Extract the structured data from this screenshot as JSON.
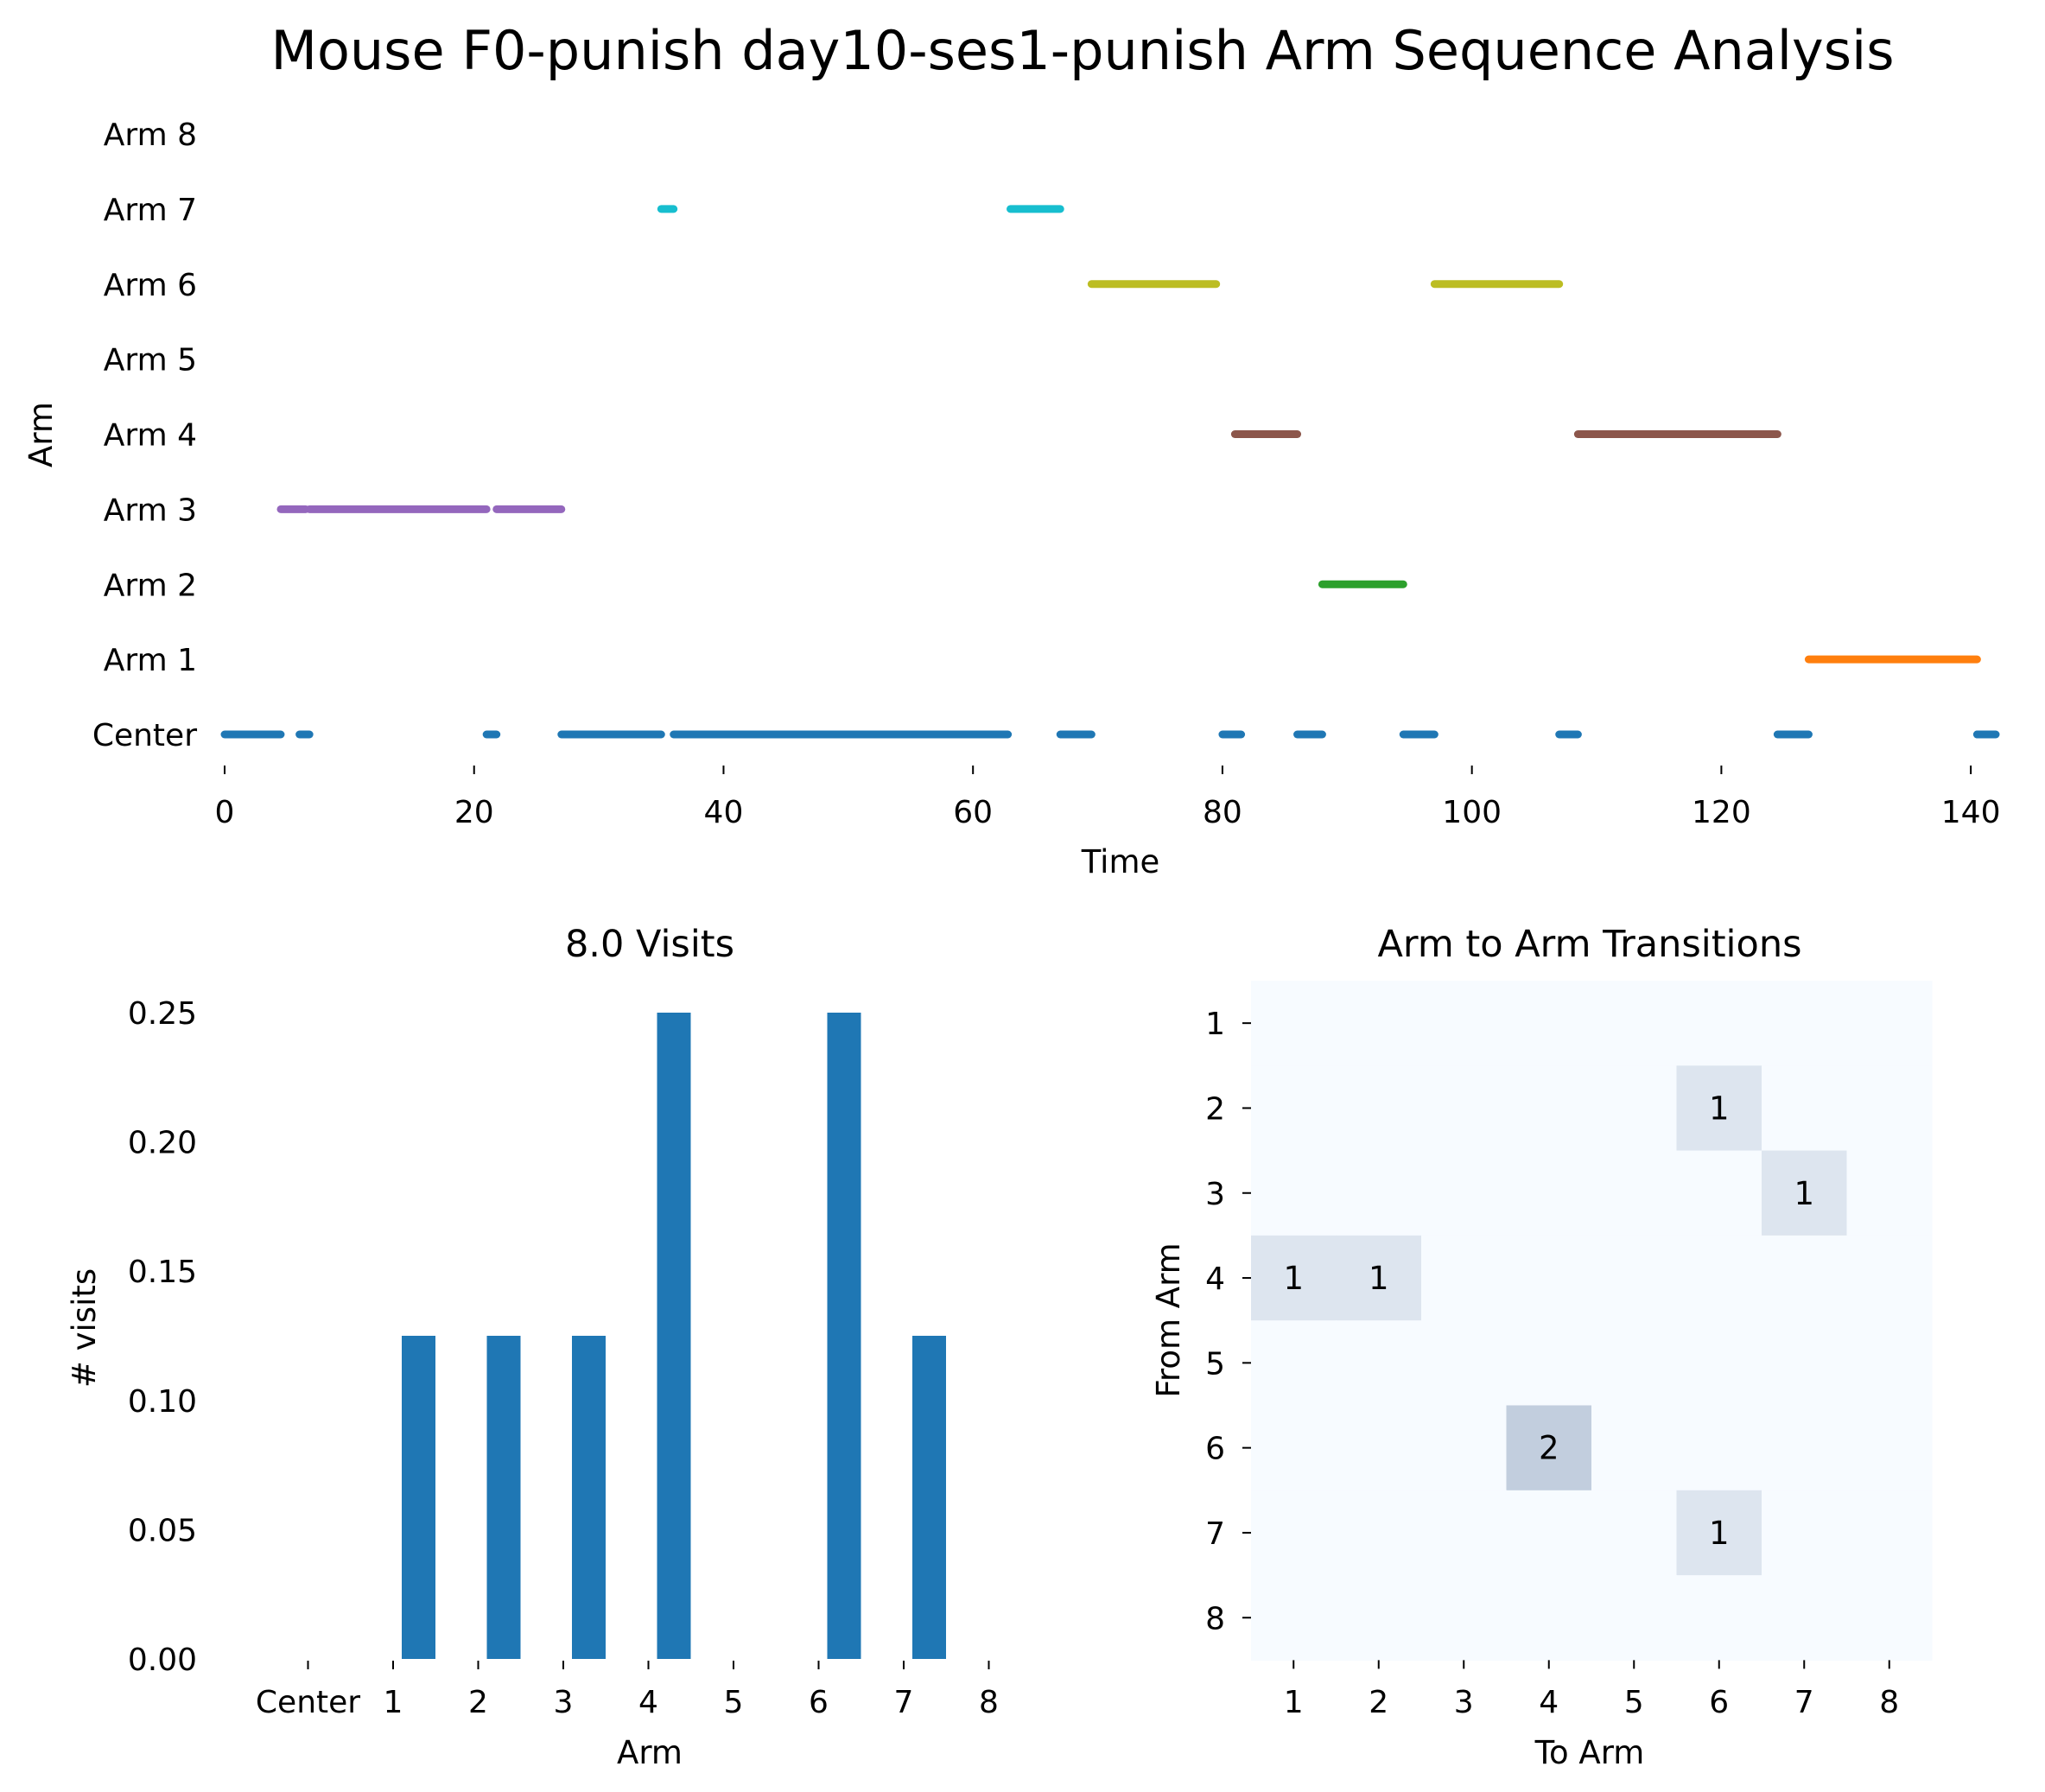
{
  "figure": {
    "title": "Mouse F0-punish day10-ses1-punish Arm Sequence Analysis"
  },
  "chart_data": [
    {
      "type": "timeline",
      "title": "",
      "xlabel": "Time",
      "ylabel": "Arm",
      "xlim": [
        0,
        142
      ],
      "x_ticks": [
        "0",
        "20",
        "40",
        "60",
        "80",
        "100",
        "120",
        "140"
      ],
      "x_tick_values": [
        0,
        20,
        40,
        60,
        80,
        100,
        120,
        140
      ],
      "y_categories": [
        "Center",
        "Arm 1",
        "Arm 2",
        "Arm 3",
        "Arm 4",
        "Arm 5",
        "Arm 6",
        "Arm 7",
        "Arm 8"
      ],
      "grid": false,
      "series": [
        {
          "arm": "Center",
          "color": "#1f77b4",
          "segments": [
            [
              0,
              4.5
            ],
            [
              6,
              6.8
            ],
            [
              21,
              21.8
            ],
            [
              27,
              35
            ],
            [
              36,
              62.8
            ],
            [
              67,
              69.5
            ],
            [
              80,
              81.5
            ],
            [
              86,
              88
            ],
            [
              94.5,
              97
            ],
            [
              107,
              108.5
            ],
            [
              124.5,
              127
            ],
            [
              140.5,
              142
            ]
          ]
        },
        {
          "arm": "Arm 1",
          "color": "#ff7f0e",
          "segments": [
            [
              127,
              140.5
            ]
          ]
        },
        {
          "arm": "Arm 2",
          "color": "#2ca02c",
          "segments": [
            [
              88,
              94.5
            ]
          ]
        },
        {
          "arm": "Arm 3",
          "color": "#9467bd",
          "segments": [
            [
              4.5,
              6.5
            ],
            [
              6.8,
              21
            ],
            [
              21.8,
              27
            ]
          ]
        },
        {
          "arm": "Arm 4",
          "color": "#8c564b",
          "segments": [
            [
              81,
              86
            ],
            [
              108.5,
              124.5
            ]
          ]
        },
        {
          "arm": "Arm 6",
          "color": "#bcbd22",
          "segments": [
            [
              69.5,
              79.5
            ],
            [
              97,
              107
            ]
          ]
        },
        {
          "arm": "Arm 7",
          "color": "#17becf",
          "segments": [
            [
              35,
              36
            ],
            [
              63,
              67
            ]
          ]
        }
      ]
    },
    {
      "type": "bar",
      "title": "8.0 Visits",
      "xlabel": "Arm",
      "ylabel": "# visits",
      "categories": [
        "Center",
        "1",
        "2",
        "3",
        "4",
        "5",
        "6",
        "7",
        "8"
      ],
      "values": [
        0,
        0.125,
        0.125,
        0.125,
        0.25,
        0,
        0.25,
        0.125,
        0
      ],
      "ylim": [
        0,
        0.25
      ],
      "y_ticks": [
        "0.00",
        "0.05",
        "0.10",
        "0.15",
        "0.20",
        "0.25"
      ],
      "y_tick_values": [
        0,
        0.05,
        0.1,
        0.15,
        0.2,
        0.25
      ],
      "color": "#1f77b4",
      "grid": false
    },
    {
      "type": "heatmap",
      "title": "Arm to Arm Transitions",
      "xlabel": "To Arm",
      "ylabel": "From Arm",
      "x_categories": [
        "1",
        "2",
        "3",
        "4",
        "5",
        "6",
        "7",
        "8"
      ],
      "y_categories": [
        "1",
        "2",
        "3",
        "4",
        "5",
        "6",
        "7",
        "8"
      ],
      "values": [
        [
          0,
          0,
          0,
          0,
          0,
          0,
          0,
          0
        ],
        [
          0,
          0,
          0,
          0,
          0,
          1,
          0,
          0
        ],
        [
          0,
          0,
          0,
          0,
          0,
          0,
          1,
          0
        ],
        [
          1,
          1,
          0,
          0,
          0,
          0,
          0,
          0
        ],
        [
          0,
          0,
          0,
          0,
          0,
          0,
          0,
          0
        ],
        [
          0,
          0,
          0,
          2,
          0,
          0,
          0,
          0
        ],
        [
          0,
          0,
          0,
          0,
          0,
          1,
          0,
          0
        ],
        [
          0,
          0,
          0,
          0,
          0,
          0,
          0,
          0
        ]
      ],
      "colormap": "Blues",
      "annotate_nonzero": true
    }
  ]
}
